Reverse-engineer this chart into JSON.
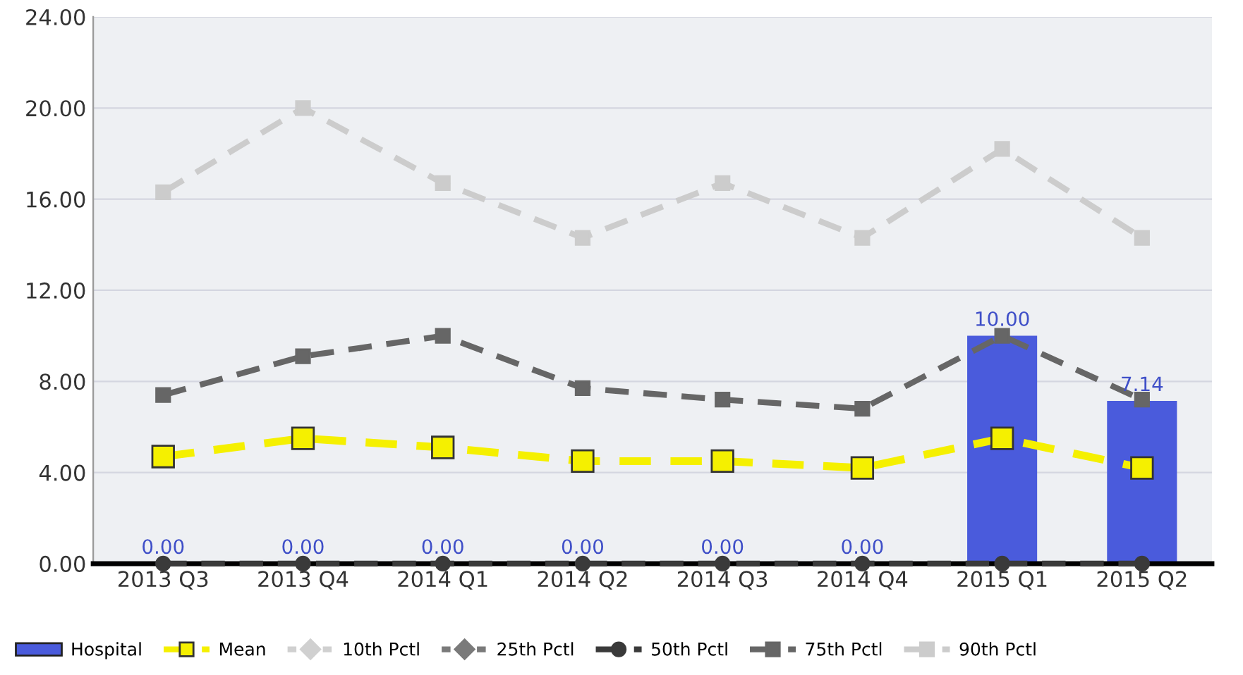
{
  "chart_data": {
    "type": "bar",
    "categories": [
      "2013 Q3",
      "2013 Q4",
      "2014 Q1",
      "2014 Q2",
      "2014 Q3",
      "2014 Q4",
      "2015 Q1",
      "2015 Q2"
    ],
    "series": [
      {
        "name": "Hospital",
        "color": "#4a5bdc",
        "values": [
          0,
          0,
          0,
          0,
          0,
          0,
          10.0,
          7.14
        ],
        "value_labels": [
          "0.00",
          "0.00",
          "0.00",
          "0.00",
          "0.00",
          "0.00",
          "10.00",
          "7.14"
        ]
      },
      {
        "name": "Mean",
        "type": "line",
        "color": "#f5f000",
        "marker": "square",
        "line_style": "dashed",
        "values": [
          4.7,
          5.5,
          5.1,
          4.5,
          4.5,
          4.2,
          5.5,
          4.2
        ]
      },
      {
        "name": "10th Pctl",
        "type": "line",
        "color": "#d0d0d0",
        "marker": "diamond",
        "line_style": "dotted",
        "values": [
          null,
          null,
          null,
          null,
          null,
          null,
          null,
          null
        ]
      },
      {
        "name": "25th Pctl",
        "type": "line",
        "color": "#7a7a7a",
        "marker": "diamond",
        "line_style": "dotted",
        "values": [
          null,
          null,
          null,
          null,
          null,
          null,
          null,
          null
        ]
      },
      {
        "name": "50th Pctl",
        "type": "line",
        "color": "#3a3a3a",
        "marker": "circle",
        "line_style": "dashed",
        "values": [
          0,
          0,
          0,
          0,
          0,
          0,
          0,
          0
        ]
      },
      {
        "name": "75th Pctl",
        "type": "line",
        "color": "#666666",
        "marker": "square",
        "line_style": "dashed",
        "values": [
          7.4,
          9.1,
          10.0,
          7.7,
          7.2,
          6.8,
          10.0,
          7.2
        ]
      },
      {
        "name": "90th Pctl",
        "type": "line",
        "color": "#cccccc",
        "marker": "square",
        "line_style": "dashed",
        "values": [
          16.3,
          20.0,
          16.7,
          14.3,
          16.7,
          14.3,
          18.2,
          14.3
        ]
      }
    ],
    "ylim": [
      0,
      24
    ],
    "yticks": [
      {
        "value": 0,
        "label": "0.00"
      },
      {
        "value": 4,
        "label": "4.00"
      },
      {
        "value": 8,
        "label": "8.00"
      },
      {
        "value": 12,
        "label": "12.00"
      },
      {
        "value": 16,
        "label": "16.00"
      },
      {
        "value": 20,
        "label": "20.00"
      },
      {
        "value": 24,
        "label": "24.00"
      }
    ],
    "grid": "y",
    "legend": "bottom"
  }
}
